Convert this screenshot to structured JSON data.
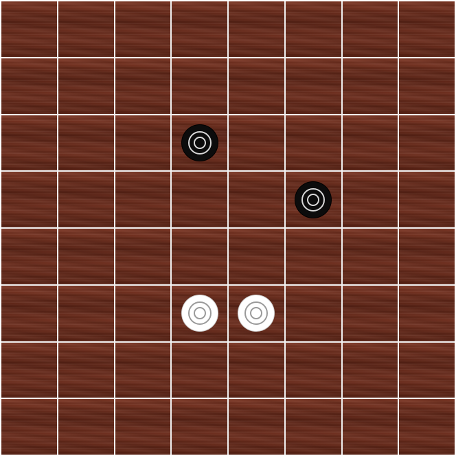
{
  "board": {
    "rows": 8,
    "cols": 8,
    "colors": {
      "wood": "#6b2b1d",
      "grid_line": "#f2f2f2",
      "black_piece": "#0c0c0c",
      "white_piece": "#ffffff"
    }
  },
  "pieces": [
    {
      "color": "black",
      "row": 2,
      "col": 3
    },
    {
      "color": "black",
      "row": 3,
      "col": 5
    },
    {
      "color": "white",
      "row": 5,
      "col": 3
    },
    {
      "color": "white",
      "row": 5,
      "col": 4
    }
  ]
}
